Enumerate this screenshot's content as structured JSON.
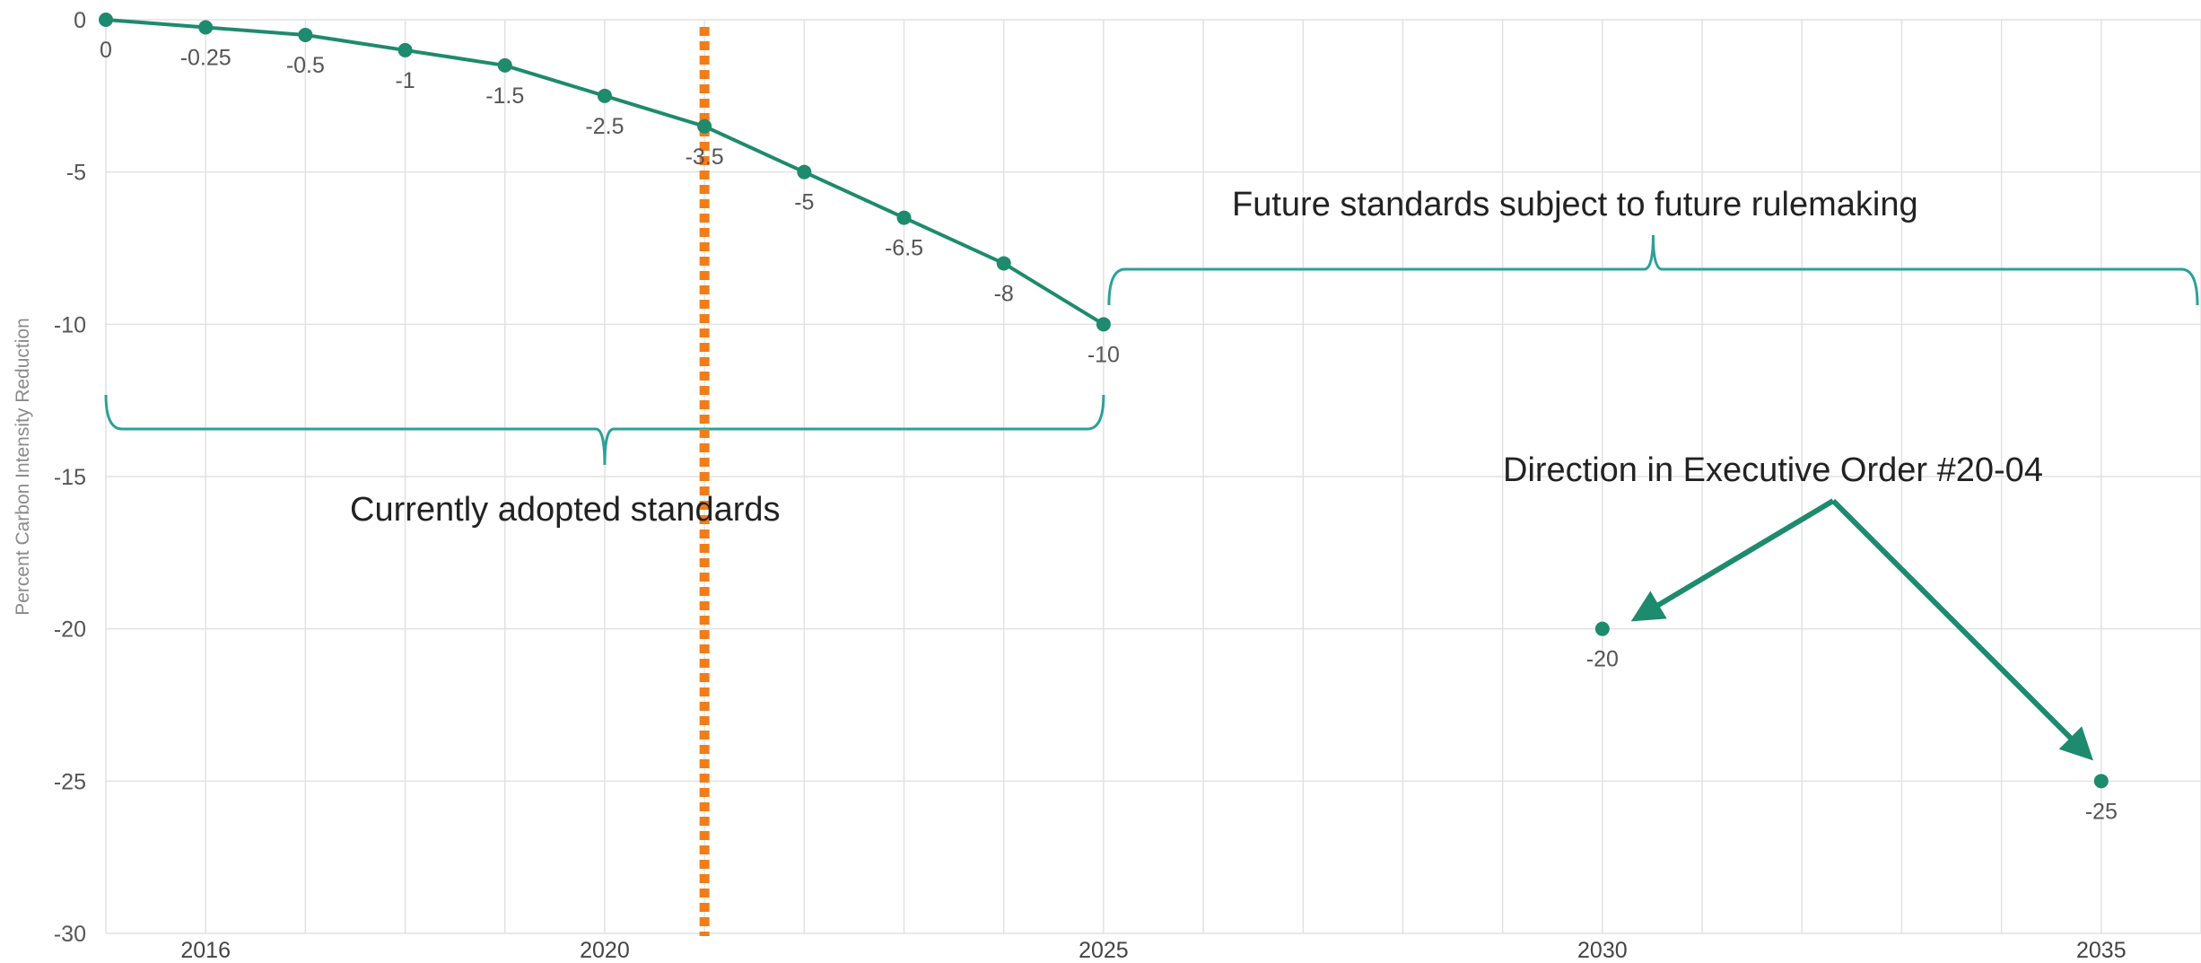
{
  "chart_data": {
    "type": "line",
    "title": "",
    "xlabel": "",
    "ylabel": "Percent Carbon Intensity Reduction",
    "xlim": [
      2015,
      2036
    ],
    "ylim": [
      -30,
      0
    ],
    "x_ticks": [
      2016,
      2020,
      2025,
      2030,
      2035
    ],
    "y_ticks": [
      0,
      -5,
      -10,
      -15,
      -20,
      -25,
      -30
    ],
    "grid": true,
    "series": [
      {
        "values": [
          {
            "x": 2015,
            "y": 0,
            "label": "0"
          },
          {
            "x": 2016,
            "y": -0.25,
            "label": "-0.25"
          },
          {
            "x": 2017,
            "y": -0.5,
            "label": "-0.5"
          },
          {
            "x": 2018,
            "y": -1,
            "label": "-1"
          },
          {
            "x": 2019,
            "y": -1.5,
            "label": "-1.5"
          },
          {
            "x": 2020,
            "y": -2.5,
            "label": "-2.5"
          },
          {
            "x": 2021,
            "y": -3.5,
            "label": "-3.5"
          },
          {
            "x": 2022,
            "y": -5,
            "label": "-5"
          },
          {
            "x": 2023,
            "y": -6.5,
            "label": "-6.5"
          },
          {
            "x": 2024,
            "y": -8,
            "label": "-8"
          },
          {
            "x": 2025,
            "y": -10,
            "label": "-10"
          }
        ],
        "color": "#1e8a6e"
      }
    ],
    "points": [
      {
        "x": 2030,
        "y": -20,
        "label": "-20"
      },
      {
        "x": 2035,
        "y": -25,
        "label": "-25"
      }
    ],
    "vertical_marker": {
      "x": 2021,
      "color": "#f07d19",
      "style": "dotted"
    },
    "annotations": {
      "future": "Future standards subject to future rulemaking",
      "current": "Currently adopted standards",
      "executive_order": "Direction in Executive Order #20-04"
    },
    "colors": {
      "line": "#1e8a6e",
      "bracket": "#2aa198",
      "marker": "#f07d19",
      "grid": "#e2e2e2"
    }
  }
}
